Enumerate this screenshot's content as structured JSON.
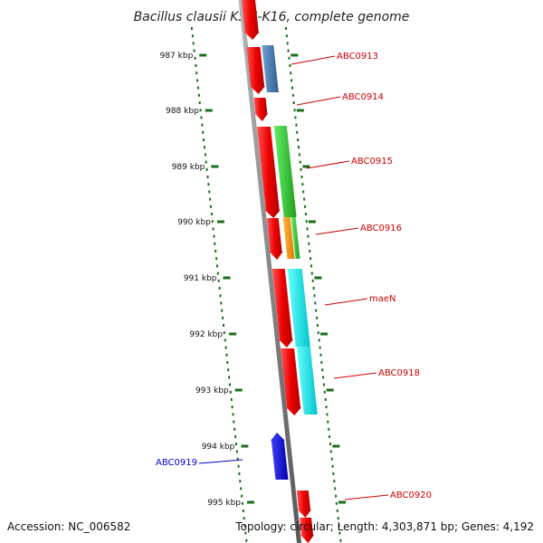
{
  "title": "Bacillus clausii KSM-K16, complete genome",
  "footer": {
    "accession": "Accession: NC_006582",
    "topology": "Topology: circular; Length: 4,303,871 bp; Genes: 4,192"
  },
  "ticks": [
    "987 kbp",
    "988 kbp",
    "989 kbp",
    "990 kbp",
    "991 kbp",
    "992 kbp",
    "993 kbp",
    "994 kbp",
    "995 kbp"
  ],
  "genes": [
    {
      "label": "ABC0913",
      "color": "#cc0000"
    },
    {
      "label": "ABC0914",
      "color": "#cc0000"
    },
    {
      "label": "ABC0915",
      "color": "#cc0000"
    },
    {
      "label": "ABC0916",
      "color": "#cc0000"
    },
    {
      "label": "maeN",
      "color": "#cc0000"
    },
    {
      "label": "ABC0918",
      "color": "#cc0000"
    },
    {
      "label": "ABC0919",
      "color": "#0000cc"
    },
    {
      "label": "ABC0920",
      "color": "#cc0000"
    }
  ],
  "colors": {
    "backbone": "#888888",
    "cds": "#ff0000",
    "tick": "#1a6e1a",
    "feature_blue": "#4a7fb5",
    "feature_green": "#33cc33",
    "feature_orange": "#ff9900",
    "feature_cyan": "#00e5ee",
    "reverse_gene": "#0000ee"
  }
}
